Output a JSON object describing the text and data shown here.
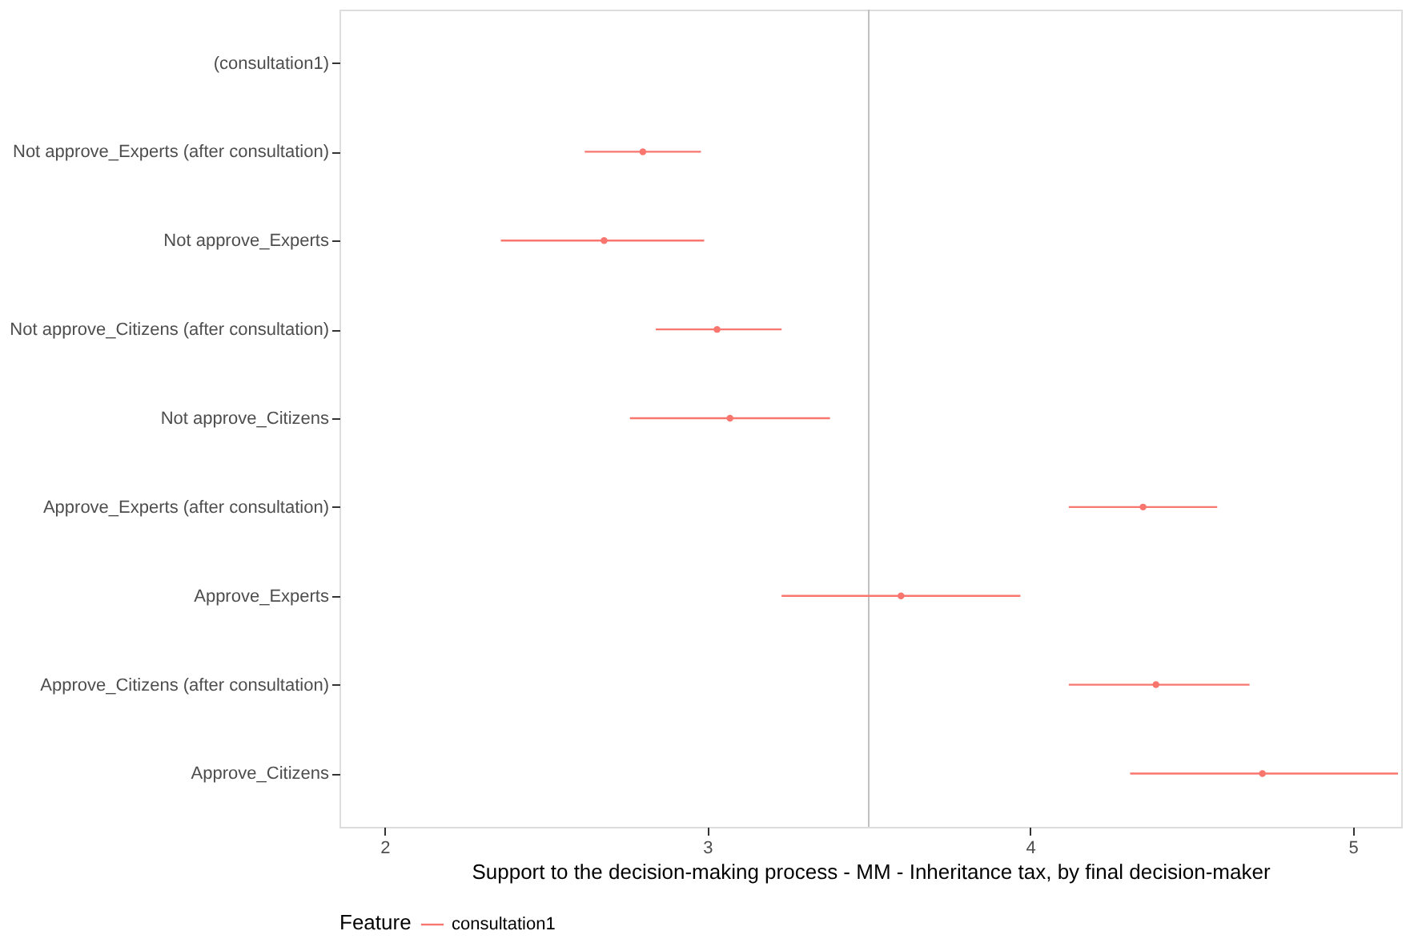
{
  "chart_data": {
    "type": "scatter",
    "orientation": "horizontal",
    "categories": [
      "(consultation1)",
      "Not approve_Experts (after consultation)",
      "Not approve_Experts",
      "Not approve_Citizens (after consultation)",
      "Not approve_Citizens",
      "Approve_Experts (after consultation)",
      "Approve_Experts",
      "Approve_Citizens (after consultation)",
      "Approve_Citizens"
    ],
    "series": [
      {
        "name": "consultation1",
        "color": "#f8766d",
        "values": [
          null,
          2.8,
          2.68,
          3.03,
          3.07,
          4.35,
          3.6,
          4.39,
          4.72
        ],
        "errors": [
          null,
          [
            2.62,
            2.98
          ],
          [
            2.36,
            2.99
          ],
          [
            2.84,
            3.23
          ],
          [
            2.76,
            3.38
          ],
          [
            4.12,
            4.58
          ],
          [
            3.23,
            3.97
          ],
          [
            4.12,
            4.68
          ],
          [
            4.31,
            5.14
          ]
        ]
      }
    ],
    "xlabel": "Support to the decision-making process - MM - Inheritance tax, by final decision-maker",
    "legend_title": "Feature",
    "legend": "bottom",
    "marker": "circle",
    "grid": false,
    "xlim": [
      1.86,
      5.15
    ],
    "xticks": [
      2,
      3,
      4,
      5
    ],
    "ref_lines": [
      {
        "axis": "x",
        "value": 3.5,
        "color": "#c0c0c0"
      }
    ]
  }
}
